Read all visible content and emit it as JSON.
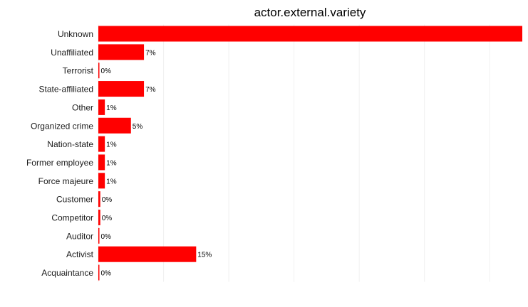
{
  "chart_data": {
    "type": "bar",
    "orientation": "horizontal",
    "title": "actor.external.variety",
    "xlabel": "",
    "ylabel": "",
    "xlim": [
      0,
      65
    ],
    "grid": true,
    "legend": "none",
    "bar_color": "#ff0000",
    "categories": [
      "Unknown",
      "Unaffiliated",
      "Terrorist",
      "State-affiliated",
      "Other",
      "Organized crime",
      "Nation-state",
      "Former employee",
      "Force majeure",
      "Customer",
      "Competitor",
      "Auditor",
      "Activist",
      "Acquaintance"
    ],
    "values": [
      65,
      7,
      0.1,
      7,
      1,
      5,
      1,
      1,
      1,
      0.3,
      0.3,
      0.1,
      15,
      0.1
    ],
    "value_labels": [
      "",
      "7%",
      "0%",
      "7%",
      "1%",
      "5%",
      "1%",
      "1%",
      "1%",
      "0%",
      "0%",
      "0%",
      "15%",
      "0%"
    ]
  }
}
